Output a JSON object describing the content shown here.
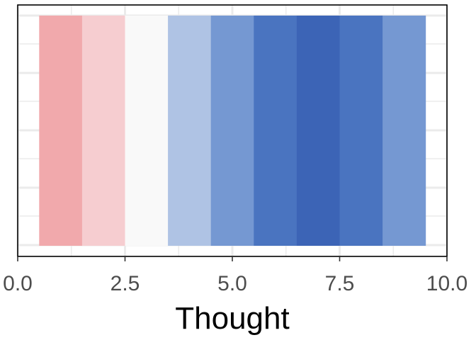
{
  "chart_data": {
    "type": "heatmap",
    "xlabel": "Thought",
    "ylabel": "",
    "title": "",
    "xlim": [
      0,
      10
    ],
    "x_ticks": [
      {
        "value": 0,
        "label": "0.0"
      },
      {
        "value": 2.5,
        "label": "2.5"
      },
      {
        "value": 5,
        "label": "5.0"
      },
      {
        "value": 7.5,
        "label": "7.5"
      },
      {
        "value": 10,
        "label": "10.0"
      }
    ],
    "grid": true,
    "legend": "none",
    "tiles": [
      {
        "x": 1,
        "width": 1,
        "color": "#f1a9ac"
      },
      {
        "x": 2,
        "width": 1,
        "color": "#f6cdd0"
      },
      {
        "x": 3,
        "width": 1,
        "color": "#f9f9f9"
      },
      {
        "x": 4,
        "width": 1,
        "color": "#afc3e4"
      },
      {
        "x": 5,
        "width": 1,
        "color": "#7598d2"
      },
      {
        "x": 6,
        "width": 1,
        "color": "#4a74c0"
      },
      {
        "x": 7,
        "width": 1,
        "color": "#3c64b6"
      },
      {
        "x": 8,
        "width": 1,
        "color": "#4a74c0"
      },
      {
        "x": 9,
        "width": 1,
        "color": "#7598d2"
      }
    ]
  },
  "colors": {
    "panel_border": "#000000",
    "grid": "#ebebeb",
    "tick_mark": "#333333"
  }
}
